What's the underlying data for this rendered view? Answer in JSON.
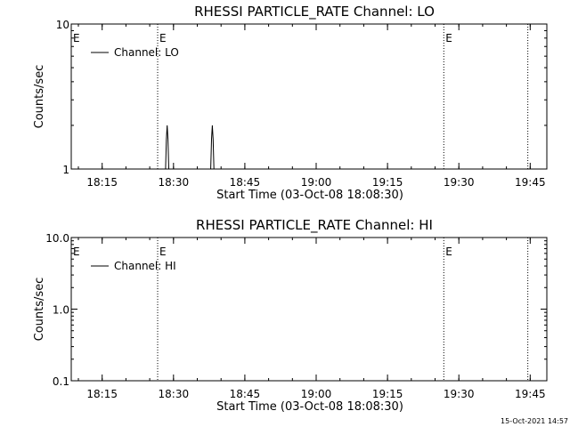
{
  "footer_timestamp": "15-Oct-2021 14:57",
  "chart_data": [
    {
      "type": "line",
      "title": "RHESSI PARTICLE_RATE Channel: LO",
      "xlabel": "Start Time (03-Oct-08 18:08:30)",
      "ylabel": "Counts/sec",
      "y_scale": "log",
      "ylim": [
        1,
        10
      ],
      "y_ticks": [
        {
          "value": 1,
          "label": "1"
        },
        {
          "value": 10,
          "label": "10"
        }
      ],
      "xlim": [
        "18:08:30",
        "19:48:30"
      ],
      "x_ticks": [
        "18:15",
        "18:30",
        "18:45",
        "19:00",
        "19:15",
        "19:30",
        "19:45"
      ],
      "legend": {
        "placement": "top-left",
        "entries": [
          "Channel: LO"
        ]
      },
      "event_markers": [
        {
          "time": "18:26:40",
          "label": "E"
        },
        {
          "time": "19:26:50",
          "label": "E"
        },
        {
          "time": "19:44:30",
          "label": ""
        }
      ],
      "series": [
        {
          "name": "Channel: LO",
          "points": [
            [
              "18:28:20",
              1
            ],
            [
              "18:28:30",
              1.6
            ],
            [
              "18:28:40",
              2
            ],
            [
              "18:28:50",
              1.6
            ],
            [
              "18:29:00",
              1
            ],
            [
              "18:37:50",
              1
            ],
            [
              "18:38:00",
              1.6
            ],
            [
              "18:38:10",
              2
            ],
            [
              "18:38:20",
              1.6
            ],
            [
              "18:38:30",
              1
            ]
          ]
        }
      ]
    },
    {
      "type": "line",
      "title": "RHESSI PARTICLE_RATE Channel: HI",
      "xlabel": "Start Time (03-Oct-08 18:08:30)",
      "ylabel": "Counts/sec",
      "y_scale": "log",
      "ylim": [
        0.1,
        10
      ],
      "y_ticks": [
        {
          "value": 0.1,
          "label": "0.1"
        },
        {
          "value": 1,
          "label": "1.0"
        },
        {
          "value": 10,
          "label": "10.0"
        }
      ],
      "xlim": [
        "18:08:30",
        "19:48:30"
      ],
      "x_ticks": [
        "18:15",
        "18:30",
        "18:45",
        "19:00",
        "19:15",
        "19:30",
        "19:45"
      ],
      "legend": {
        "placement": "top-left",
        "entries": [
          "Channel: HI"
        ]
      },
      "event_markers": [
        {
          "time": "18:26:40",
          "label": "E"
        },
        {
          "time": "19:26:50",
          "label": "E"
        },
        {
          "time": "19:44:30",
          "label": ""
        }
      ],
      "series": [
        {
          "name": "Channel: HI",
          "points": []
        }
      ]
    }
  ]
}
